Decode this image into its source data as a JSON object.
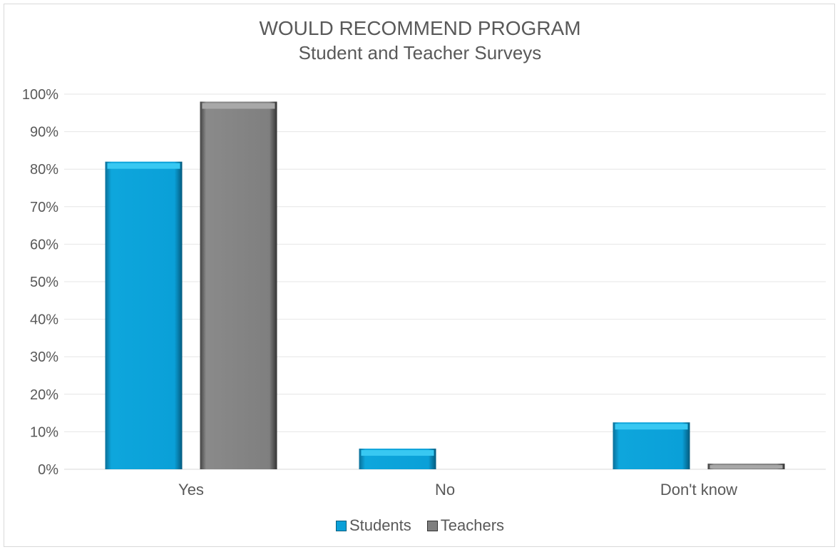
{
  "chart_data": {
    "type": "bar",
    "title": "WOULD RECOMMEND PROGRAM",
    "subtitle": "Student and Teacher Surveys",
    "categories": [
      "Yes",
      "No",
      "Don't know"
    ],
    "series": [
      {
        "name": "Students",
        "values": [
          82,
          5.5,
          12.5
        ],
        "color": "#0aa0d8"
      },
      {
        "name": "Teachers",
        "values": [
          98,
          0,
          1.5
        ],
        "color": "#7f7f7f"
      }
    ],
    "ylim": [
      0,
      100
    ],
    "yticks": [
      "0%",
      "10%",
      "20%",
      "30%",
      "40%",
      "50%",
      "60%",
      "70%",
      "80%",
      "90%",
      "100%"
    ],
    "grid": true,
    "legend_position": "bottom"
  }
}
